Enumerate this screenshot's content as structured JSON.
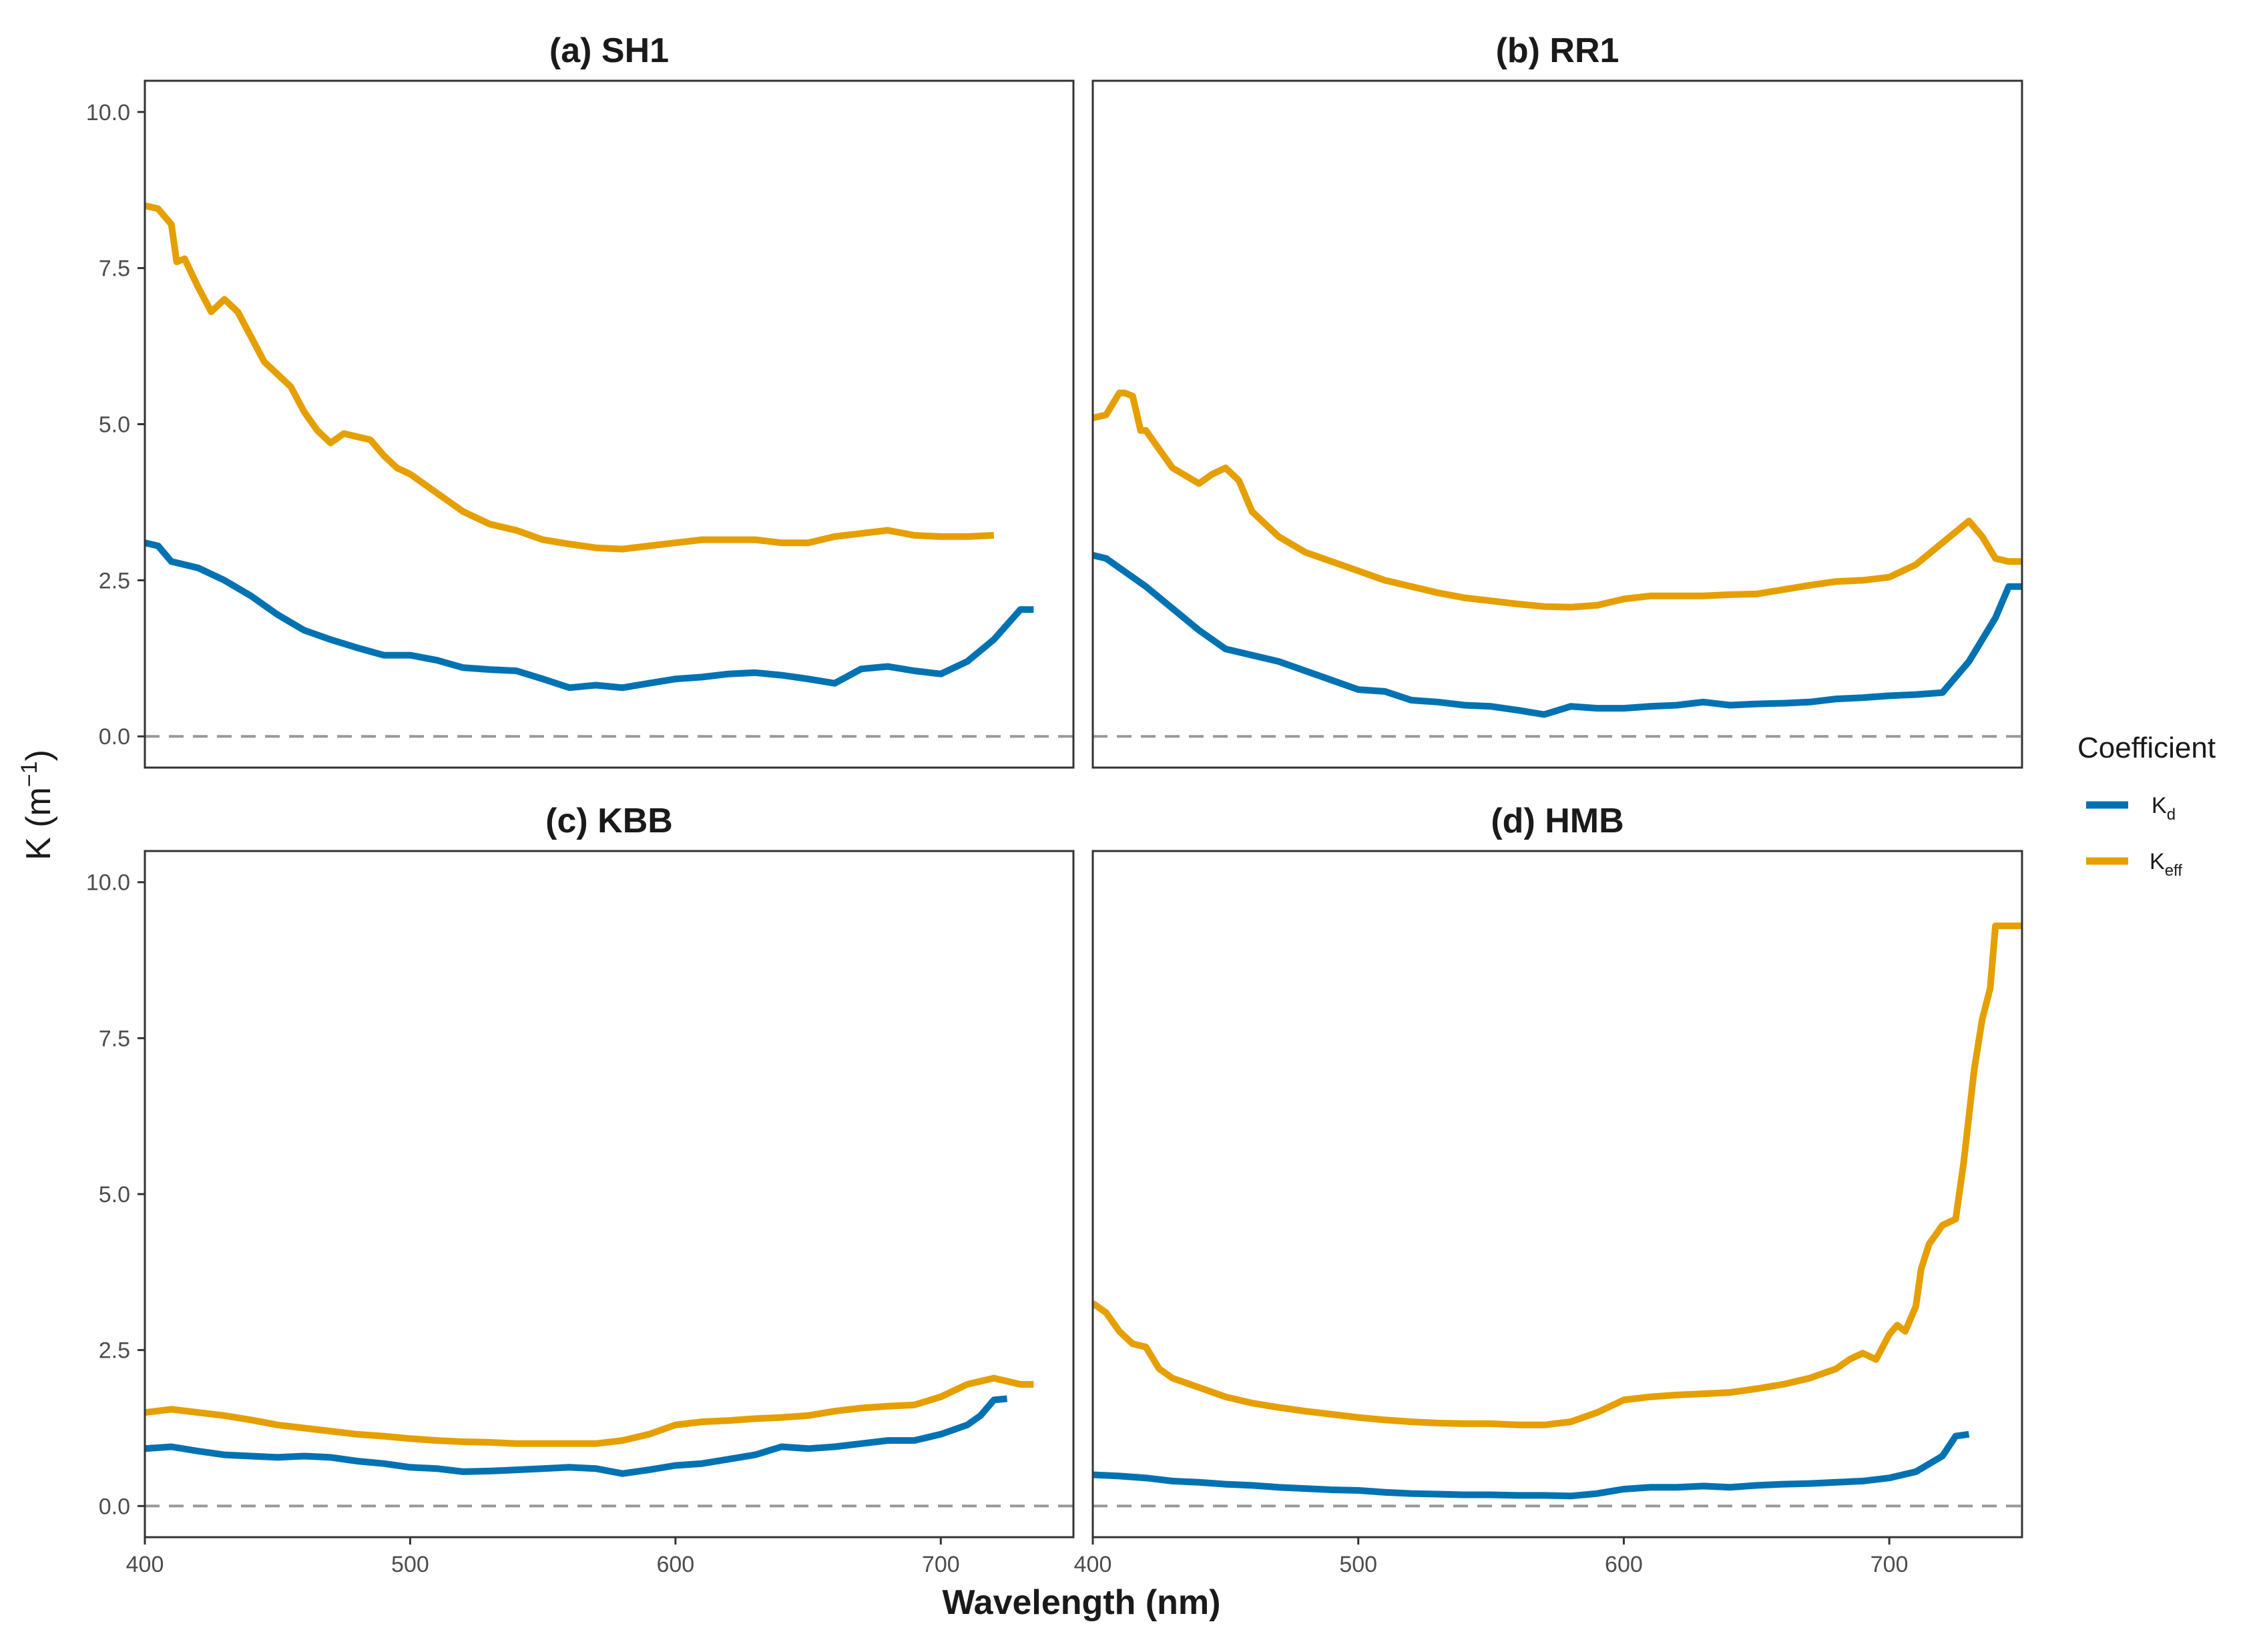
{
  "chart_data": {
    "type": "line",
    "ylabel": "K (m",
    "ylabel_sup": "−1",
    "ylabel_close": ")",
    "xlabel": "Wavelength (nm)",
    "xlim": [
      400,
      750
    ],
    "ylim": [
      -0.5,
      10.5
    ],
    "x_ticks": [
      400,
      500,
      600,
      700
    ],
    "y_ticks": [
      0.0,
      2.5,
      5.0,
      7.5,
      10.0
    ],
    "x_tick_labels": [
      "400",
      "500",
      "600",
      "700"
    ],
    "y_tick_labels": [
      "0.0",
      "2.5",
      "5.0",
      "7.5",
      "10.0"
    ],
    "reference_line": 0,
    "colors": {
      "Kd": "#0072B2",
      "Keff": "#E69F00",
      "reference": "#999999",
      "frame": "#333333"
    },
    "legend": {
      "title": "Coefficient",
      "entries": [
        {
          "key": "Kd",
          "base": "K",
          "sub": "d"
        },
        {
          "key": "Keff",
          "base": "K",
          "sub": "eff"
        }
      ]
    },
    "panels": [
      {
        "title": "(a) SH1",
        "series": [
          {
            "name": "Kd",
            "x": [
              400,
              405,
              410,
              420,
              430,
              440,
              450,
              460,
              470,
              480,
              490,
              500,
              510,
              520,
              530,
              540,
              550,
              560,
              570,
              580,
              590,
              600,
              610,
              620,
              630,
              640,
              650,
              660,
              670,
              680,
              690,
              700,
              710,
              720,
              730,
              735
            ],
            "y": [
              3.1,
              3.05,
              2.8,
              2.7,
              2.5,
              2.25,
              1.95,
              1.7,
              1.55,
              1.42,
              1.3,
              1.3,
              1.22,
              1.1,
              1.07,
              1.05,
              0.92,
              0.78,
              0.82,
              0.78,
              0.85,
              0.92,
              0.95,
              1.0,
              1.02,
              0.98,
              0.92,
              0.85,
              1.08,
              1.12,
              1.05,
              1.0,
              1.2,
              1.55,
              2.03,
              2.03
            ]
          },
          {
            "name": "Keff",
            "x": [
              400,
              405,
              410,
              412,
              415,
              420,
              425,
              430,
              435,
              440,
              445,
              450,
              455,
              460,
              465,
              470,
              475,
              480,
              485,
              490,
              495,
              500,
              510,
              520,
              530,
              540,
              550,
              560,
              570,
              580,
              590,
              600,
              610,
              620,
              630,
              640,
              650,
              660,
              670,
              680,
              690,
              700,
              710,
              720
            ],
            "y": [
              8.5,
              8.45,
              8.2,
              7.6,
              7.65,
              7.2,
              6.8,
              7.0,
              6.8,
              6.4,
              6.0,
              5.8,
              5.6,
              5.2,
              4.9,
              4.7,
              4.85,
              4.8,
              4.75,
              4.5,
              4.3,
              4.2,
              3.9,
              3.6,
              3.4,
              3.3,
              3.15,
              3.08,
              3.02,
              3.0,
              3.05,
              3.1,
              3.15,
              3.15,
              3.15,
              3.1,
              3.1,
              3.2,
              3.25,
              3.3,
              3.22,
              3.2,
              3.2,
              3.22
            ]
          }
        ]
      },
      {
        "title": "(b) RR1",
        "series": [
          {
            "name": "Kd",
            "x": [
              400,
              405,
              410,
              420,
              430,
              440,
              450,
              460,
              470,
              480,
              490,
              500,
              510,
              520,
              530,
              540,
              550,
              560,
              570,
              580,
              590,
              600,
              610,
              620,
              630,
              640,
              650,
              660,
              670,
              680,
              690,
              700,
              710,
              720,
              730,
              740,
              745,
              750
            ],
            "y": [
              2.9,
              2.85,
              2.7,
              2.4,
              2.05,
              1.7,
              1.4,
              1.3,
              1.2,
              1.05,
              0.9,
              0.75,
              0.72,
              0.58,
              0.55,
              0.5,
              0.48,
              0.42,
              0.35,
              0.48,
              0.45,
              0.45,
              0.48,
              0.5,
              0.55,
              0.5,
              0.52,
              0.53,
              0.55,
              0.6,
              0.62,
              0.65,
              0.67,
              0.7,
              1.2,
              1.9,
              2.4,
              2.4
            ]
          },
          {
            "name": "Keff",
            "x": [
              400,
              405,
              410,
              412,
              415,
              418,
              420,
              425,
              430,
              440,
              445,
              450,
              455,
              460,
              465,
              470,
              480,
              490,
              500,
              510,
              520,
              530,
              540,
              550,
              560,
              570,
              580,
              590,
              600,
              610,
              620,
              630,
              640,
              650,
              660,
              670,
              680,
              690,
              700,
              710,
              720,
              730,
              735,
              740,
              745,
              750
            ],
            "y": [
              5.1,
              5.15,
              5.5,
              5.5,
              5.45,
              4.9,
              4.9,
              4.6,
              4.3,
              4.05,
              4.2,
              4.3,
              4.1,
              3.6,
              3.4,
              3.2,
              2.95,
              2.8,
              2.65,
              2.5,
              2.4,
              2.3,
              2.22,
              2.17,
              2.12,
              2.08,
              2.07,
              2.1,
              2.2,
              2.25,
              2.25,
              2.25,
              2.27,
              2.28,
              2.35,
              2.42,
              2.48,
              2.5,
              2.55,
              2.75,
              3.1,
              3.45,
              3.2,
              2.85,
              2.8,
              2.8
            ]
          }
        ]
      },
      {
        "title": "(c) KBB",
        "series": [
          {
            "name": "Kd",
            "x": [
              400,
              410,
              420,
              430,
              440,
              450,
              460,
              470,
              480,
              490,
              500,
              510,
              520,
              530,
              540,
              550,
              560,
              570,
              580,
              590,
              600,
              610,
              620,
              630,
              640,
              650,
              660,
              670,
              680,
              690,
              700,
              710,
              715,
              720,
              725
            ],
            "y": [
              0.92,
              0.95,
              0.88,
              0.82,
              0.8,
              0.78,
              0.8,
              0.78,
              0.72,
              0.68,
              0.62,
              0.6,
              0.55,
              0.56,
              0.58,
              0.6,
              0.62,
              0.6,
              0.52,
              0.58,
              0.65,
              0.68,
              0.75,
              0.82,
              0.95,
              0.92,
              0.95,
              1.0,
              1.05,
              1.05,
              1.15,
              1.3,
              1.45,
              1.7,
              1.72
            ]
          },
          {
            "name": "Keff",
            "x": [
              400,
              410,
              420,
              430,
              440,
              450,
              460,
              470,
              480,
              490,
              500,
              510,
              520,
              530,
              540,
              550,
              560,
              570,
              580,
              590,
              600,
              610,
              620,
              630,
              640,
              650,
              660,
              670,
              680,
              690,
              700,
              710,
              720,
              725,
              730,
              735
            ],
            "y": [
              1.5,
              1.55,
              1.5,
              1.45,
              1.38,
              1.3,
              1.25,
              1.2,
              1.15,
              1.12,
              1.08,
              1.05,
              1.03,
              1.02,
              1.0,
              1.0,
              1.0,
              1.0,
              1.05,
              1.15,
              1.3,
              1.35,
              1.37,
              1.4,
              1.42,
              1.45,
              1.52,
              1.57,
              1.6,
              1.62,
              1.75,
              1.95,
              2.05,
              2.0,
              1.95,
              1.95
            ]
          }
        ]
      },
      {
        "title": "(d) HMB",
        "series": [
          {
            "name": "Kd",
            "x": [
              400,
              410,
              420,
              430,
              440,
              450,
              460,
              470,
              480,
              490,
              500,
              510,
              520,
              530,
              540,
              550,
              560,
              570,
              580,
              590,
              600,
              610,
              620,
              630,
              640,
              650,
              660,
              670,
              680,
              690,
              700,
              710,
              720,
              725,
              730
            ],
            "y": [
              0.5,
              0.48,
              0.45,
              0.4,
              0.38,
              0.35,
              0.33,
              0.3,
              0.28,
              0.26,
              0.25,
              0.22,
              0.2,
              0.19,
              0.18,
              0.18,
              0.17,
              0.17,
              0.16,
              0.2,
              0.27,
              0.3,
              0.3,
              0.32,
              0.3,
              0.33,
              0.35,
              0.36,
              0.38,
              0.4,
              0.45,
              0.55,
              0.8,
              1.12,
              1.15
            ]
          },
          {
            "name": "Keff",
            "x": [
              400,
              405,
              410,
              415,
              420,
              425,
              430,
              440,
              450,
              460,
              470,
              480,
              490,
              500,
              510,
              520,
              530,
              540,
              550,
              560,
              570,
              580,
              590,
              600,
              610,
              620,
              630,
              640,
              650,
              660,
              670,
              680,
              685,
              690,
              695,
              700,
              703,
              706,
              710,
              712,
              715,
              720,
              725,
              728,
              732,
              735,
              738,
              740,
              745,
              750
            ],
            "y": [
              3.25,
              3.1,
              2.8,
              2.6,
              2.55,
              2.2,
              2.05,
              1.9,
              1.75,
              1.65,
              1.58,
              1.52,
              1.47,
              1.42,
              1.38,
              1.35,
              1.33,
              1.32,
              1.32,
              1.3,
              1.3,
              1.35,
              1.5,
              1.7,
              1.75,
              1.78,
              1.8,
              1.82,
              1.88,
              1.95,
              2.05,
              2.2,
              2.35,
              2.45,
              2.35,
              2.75,
              2.9,
              2.8,
              3.2,
              3.8,
              4.2,
              4.5,
              4.6,
              5.5,
              7.0,
              7.8,
              8.3,
              9.3,
              9.3,
              9.3
            ]
          }
        ]
      }
    ]
  }
}
